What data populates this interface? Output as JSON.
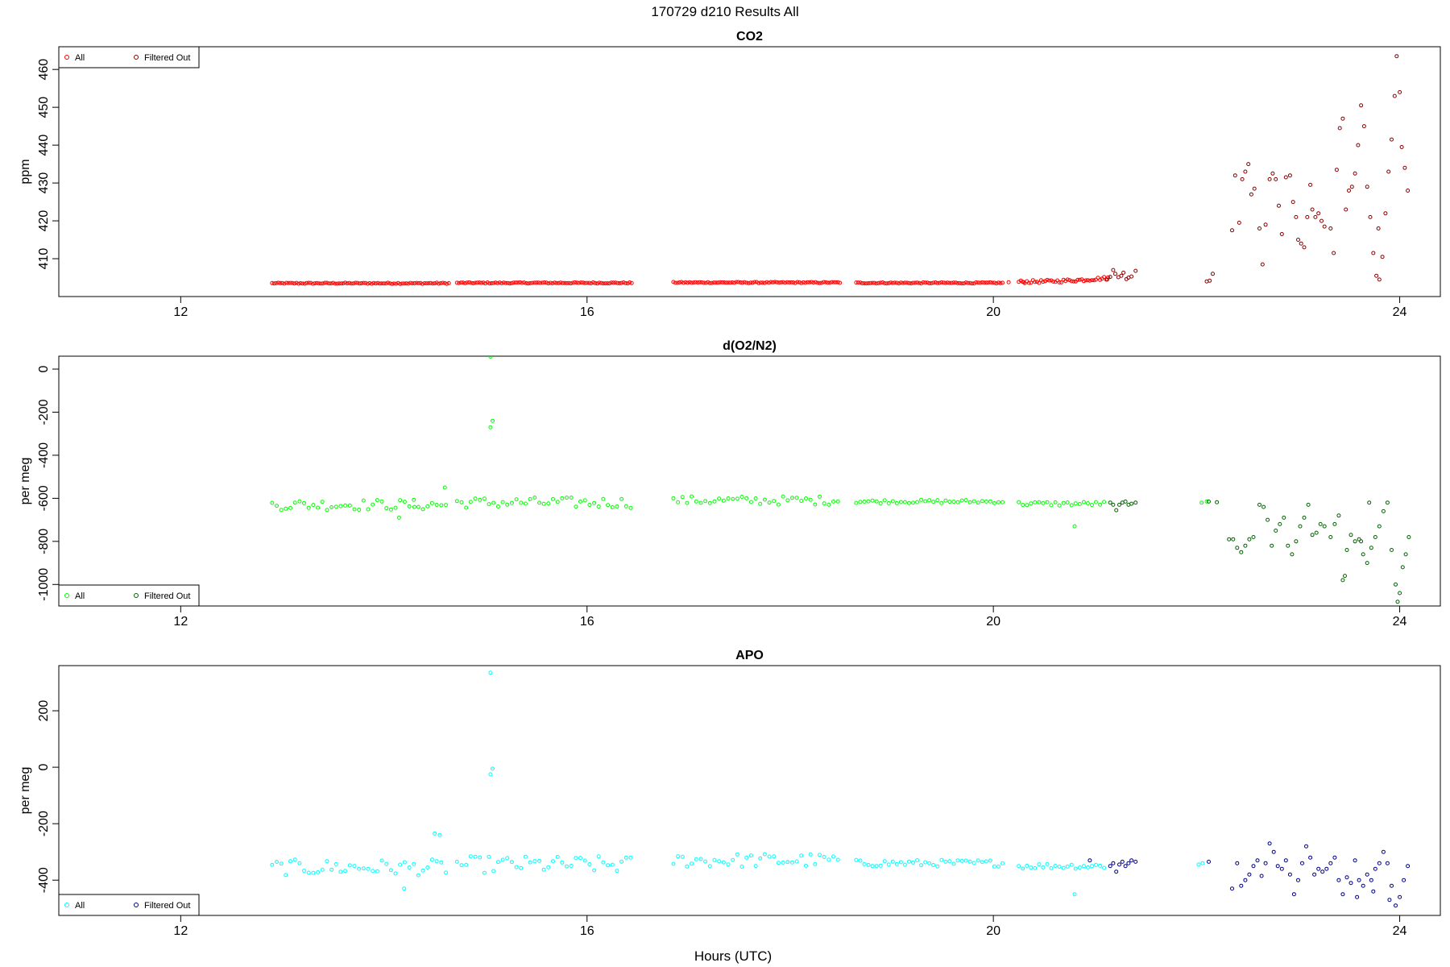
{
  "figure": {
    "title": "170729   d210   Results All",
    "xlabel": "Hours (UTC)"
  },
  "chart_data": [
    {
      "type": "scatter",
      "title": "CO2",
      "ylabel": "ppm",
      "xlim": [
        10.8,
        24.4
      ],
      "ylim": [
        400,
        466
      ],
      "xticks": [
        12,
        16,
        20,
        24
      ],
      "yticks": [
        410,
        420,
        430,
        440,
        450,
        460
      ],
      "legend": {
        "position": "top-left",
        "entries": [
          "All",
          "Filtered Out"
        ]
      },
      "series": [
        {
          "name": "All",
          "color": "#ff0000",
          "segments": [
            {
              "start": 12.9,
              "end": 14.65,
              "step": 0.02,
              "base": 403.5,
              "noise": 0.15,
              "drift": 0.0
            },
            {
              "start": 14.72,
              "end": 16.45,
              "step": 0.02,
              "base": 403.6,
              "noise": 0.15,
              "drift": 0.0
            },
            {
              "start": 16.85,
              "end": 18.5,
              "step": 0.02,
              "base": 403.7,
              "noise": 0.15,
              "drift": 0.0
            },
            {
              "start": 18.65,
              "end": 20.1,
              "step": 0.02,
              "base": 403.6,
              "noise": 0.15,
              "drift": 0.0
            },
            {
              "start": 20.25,
              "end": 21.15,
              "step": 0.02,
              "base": 403.9,
              "noise": 0.4,
              "drift": 1.0
            }
          ],
          "points": [
            [
              20.15,
              403.8
            ],
            [
              20.3,
              403.8
            ]
          ]
        },
        {
          "name": "Filtered Out",
          "color": "#8b0000",
          "points": [
            [
              21.12,
              404.5
            ],
            [
              21.15,
              405.2
            ],
            [
              21.18,
              407.0
            ],
            [
              21.2,
              406.0
            ],
            [
              21.23,
              405.1
            ],
            [
              21.26,
              405.5
            ],
            [
              21.28,
              406.3
            ],
            [
              21.31,
              404.6
            ],
            [
              21.33,
              405.0
            ],
            [
              21.36,
              405.3
            ],
            [
              21.4,
              406.8
            ],
            [
              22.1,
              404.0
            ],
            [
              22.13,
              404.2
            ],
            [
              22.16,
              406.0
            ],
            [
              22.35,
              417.5
            ],
            [
              22.38,
              432.0
            ],
            [
              22.42,
              419.5
            ],
            [
              22.45,
              431.0
            ],
            [
              22.48,
              433.0
            ],
            [
              22.51,
              435.0
            ],
            [
              22.54,
              427.0
            ],
            [
              22.57,
              428.5
            ],
            [
              22.62,
              418.0
            ],
            [
              22.65,
              408.5
            ],
            [
              22.68,
              419.0
            ],
            [
              22.72,
              431.0
            ],
            [
              22.75,
              432.5
            ],
            [
              22.78,
              431.0
            ],
            [
              22.81,
              424.0
            ],
            [
              22.84,
              416.5
            ],
            [
              22.88,
              431.5
            ],
            [
              22.92,
              432.0
            ],
            [
              22.95,
              425.0
            ],
            [
              22.98,
              421.0
            ],
            [
              23.0,
              415.0
            ],
            [
              23.03,
              414.0
            ],
            [
              23.06,
              413.0
            ],
            [
              23.09,
              421.0
            ],
            [
              23.12,
              429.5
            ],
            [
              23.14,
              423.0
            ],
            [
              23.17,
              421.0
            ],
            [
              23.2,
              422.0
            ],
            [
              23.23,
              420.0
            ],
            [
              23.26,
              418.5
            ],
            [
              23.32,
              418.0
            ],
            [
              23.35,
              411.5
            ],
            [
              23.38,
              433.5
            ],
            [
              23.41,
              444.5
            ],
            [
              23.44,
              447.0
            ],
            [
              23.47,
              423.0
            ],
            [
              23.5,
              428.0
            ],
            [
              23.53,
              429.0
            ],
            [
              23.56,
              432.5
            ],
            [
              23.59,
              440.0
            ],
            [
              23.62,
              450.5
            ],
            [
              23.65,
              445.0
            ],
            [
              23.68,
              429.0
            ],
            [
              23.71,
              421.0
            ],
            [
              23.74,
              411.5
            ],
            [
              23.77,
              405.5
            ],
            [
              23.8,
              404.5
            ],
            [
              23.83,
              410.5
            ],
            [
              23.86,
              422.0
            ],
            [
              23.89,
              433.0
            ],
            [
              23.92,
              441.5
            ],
            [
              23.95,
              453.0
            ],
            [
              23.97,
              463.5
            ],
            [
              24.0,
              454.0
            ],
            [
              24.02,
              439.5
            ],
            [
              24.05,
              434.0
            ],
            [
              24.08,
              428.0
            ],
            [
              23.79,
              418.0
            ]
          ]
        }
      ]
    },
    {
      "type": "scatter",
      "title": "d(O2/N2)",
      "ylabel": "per meg",
      "xlim": [
        10.8,
        24.4
      ],
      "ylim": [
        -1100,
        60
      ],
      "xticks": [
        12,
        16,
        20,
        24
      ],
      "yticks": [
        -1000,
        -800,
        -600,
        -400,
        -200,
        0
      ],
      "legend": {
        "position": "bottom-left",
        "entries": [
          "All",
          "Filtered Out"
        ]
      },
      "series": [
        {
          "name": "All",
          "color": "#00ff00",
          "segments": [
            {
              "start": 12.9,
              "end": 14.65,
              "step": 0.045,
              "base": -630,
              "noise": 25,
              "drift": 0
            },
            {
              "start": 14.72,
              "end": 16.45,
              "step": 0.045,
              "base": -620,
              "noise": 25,
              "drift": 0
            },
            {
              "start": 16.85,
              "end": 18.5,
              "step": 0.045,
              "base": -610,
              "noise": 20,
              "drift": 0
            },
            {
              "start": 18.65,
              "end": 20.1,
              "step": 0.04,
              "base": -615,
              "noise": 8,
              "drift": 0
            },
            {
              "start": 20.25,
              "end": 21.1,
              "step": 0.04,
              "base": -625,
              "noise": 10,
              "drift": 0
            }
          ],
          "points": [
            [
              15.05,
              58
            ],
            [
              15.07,
              -240
            ],
            [
              15.05,
              -270
            ],
            [
              14.6,
              -550
            ],
            [
              14.3,
              -640
            ],
            [
              14.15,
              -690
            ],
            [
              20.8,
              -730
            ],
            [
              22.05,
              -620
            ],
            [
              22.1,
              -615
            ]
          ]
        },
        {
          "name": "Filtered Out",
          "color": "#006400",
          "points": [
            [
              21.15,
              -620
            ],
            [
              21.18,
              -630
            ],
            [
              21.21,
              -655
            ],
            [
              21.24,
              -630
            ],
            [
              21.27,
              -620
            ],
            [
              21.3,
              -615
            ],
            [
              21.33,
              -630
            ],
            [
              21.36,
              -625
            ],
            [
              21.4,
              -620
            ],
            [
              22.12,
              -615
            ],
            [
              22.2,
              -618
            ],
            [
              22.32,
              -790
            ],
            [
              22.36,
              -790
            ],
            [
              22.4,
              -830
            ],
            [
              22.44,
              -850
            ],
            [
              22.48,
              -820
            ],
            [
              22.52,
              -790
            ],
            [
              22.56,
              -780
            ],
            [
              22.62,
              -630
            ],
            [
              22.66,
              -640
            ],
            [
              22.7,
              -700
            ],
            [
              22.74,
              -820
            ],
            [
              22.78,
              -750
            ],
            [
              22.82,
              -720
            ],
            [
              22.86,
              -690
            ],
            [
              22.9,
              -820
            ],
            [
              22.94,
              -860
            ],
            [
              22.98,
              -800
            ],
            [
              23.02,
              -730
            ],
            [
              23.06,
              -690
            ],
            [
              23.1,
              -630
            ],
            [
              23.14,
              -770
            ],
            [
              23.18,
              -760
            ],
            [
              23.22,
              -720
            ],
            [
              23.26,
              -730
            ],
            [
              23.32,
              -780
            ],
            [
              23.36,
              -720
            ],
            [
              23.4,
              -680
            ],
            [
              23.44,
              -980
            ],
            [
              23.48,
              -840
            ],
            [
              23.52,
              -770
            ],
            [
              23.56,
              -800
            ],
            [
              23.6,
              -790
            ],
            [
              23.64,
              -860
            ],
            [
              23.68,
              -900
            ],
            [
              23.72,
              -830
            ],
            [
              23.76,
              -780
            ],
            [
              23.8,
              -730
            ],
            [
              23.84,
              -660
            ],
            [
              23.88,
              -620
            ],
            [
              23.92,
              -840
            ],
            [
              23.96,
              -1000
            ],
            [
              24.0,
              -1040
            ],
            [
              24.03,
              -920
            ],
            [
              24.06,
              -860
            ],
            [
              24.09,
              -780
            ],
            [
              23.62,
              -800
            ],
            [
              23.98,
              -1080
            ],
            [
              23.7,
              -620
            ],
            [
              23.46,
              -960
            ]
          ]
        }
      ]
    },
    {
      "type": "scatter",
      "title": "APO",
      "ylabel": "per meg",
      "xlim": [
        10.8,
        24.4
      ],
      "ylim": [
        -525,
        360
      ],
      "xticks": [
        12,
        16,
        20,
        24
      ],
      "yticks": [
        -400,
        -200,
        0,
        200
      ],
      "legend": {
        "position": "bottom-left",
        "entries": [
          "All",
          "Filtered Out"
        ]
      },
      "series": [
        {
          "name": "All",
          "color": "#00ffff",
          "segments": [
            {
              "start": 12.9,
              "end": 14.65,
              "step": 0.045,
              "base": -355,
              "noise": 28,
              "drift": 0
            },
            {
              "start": 14.72,
              "end": 16.45,
              "step": 0.045,
              "base": -345,
              "noise": 30,
              "drift": 0
            },
            {
              "start": 16.85,
              "end": 18.5,
              "step": 0.045,
              "base": -330,
              "noise": 25,
              "drift": 0
            },
            {
              "start": 18.65,
              "end": 20.1,
              "step": 0.04,
              "base": -340,
              "noise": 12,
              "drift": 0
            },
            {
              "start": 20.25,
              "end": 21.1,
              "step": 0.04,
              "base": -350,
              "noise": 10,
              "drift": 0
            }
          ],
          "points": [
            [
              15.05,
              335
            ],
            [
              15.07,
              -5
            ],
            [
              15.05,
              -25
            ],
            [
              14.5,
              -235
            ],
            [
              14.55,
              -240
            ],
            [
              14.2,
              -430
            ],
            [
              20.8,
              -450
            ],
            [
              22.02,
              -345
            ],
            [
              22.06,
              -340
            ]
          ]
        },
        {
          "name": "Filtered Out",
          "color": "#00008b",
          "points": [
            [
              20.95,
              -330
            ],
            [
              21.15,
              -350
            ],
            [
              21.18,
              -340
            ],
            [
              21.21,
              -370
            ],
            [
              21.24,
              -345
            ],
            [
              21.27,
              -335
            ],
            [
              21.3,
              -350
            ],
            [
              21.33,
              -340
            ],
            [
              21.36,
              -330
            ],
            [
              21.4,
              -335
            ],
            [
              22.12,
              -335
            ],
            [
              22.35,
              -430
            ],
            [
              22.4,
              -340
            ],
            [
              22.44,
              -420
            ],
            [
              22.48,
              -400
            ],
            [
              22.52,
              -380
            ],
            [
              22.56,
              -350
            ],
            [
              22.6,
              -330
            ],
            [
              22.64,
              -385
            ],
            [
              22.68,
              -340
            ],
            [
              22.72,
              -270
            ],
            [
              22.76,
              -300
            ],
            [
              22.8,
              -350
            ],
            [
              22.84,
              -360
            ],
            [
              22.88,
              -330
            ],
            [
              22.92,
              -380
            ],
            [
              22.96,
              -450
            ],
            [
              23.0,
              -400
            ],
            [
              23.04,
              -340
            ],
            [
              23.08,
              -280
            ],
            [
              23.12,
              -320
            ],
            [
              23.16,
              -380
            ],
            [
              23.2,
              -360
            ],
            [
              23.24,
              -370
            ],
            [
              23.28,
              -360
            ],
            [
              23.32,
              -340
            ],
            [
              23.36,
              -320
            ],
            [
              23.4,
              -400
            ],
            [
              23.44,
              -450
            ],
            [
              23.48,
              -390
            ],
            [
              23.52,
              -410
            ],
            [
              23.56,
              -330
            ],
            [
              23.6,
              -400
            ],
            [
              23.64,
              -420
            ],
            [
              23.68,
              -380
            ],
            [
              23.72,
              -400
            ],
            [
              23.76,
              -360
            ],
            [
              23.8,
              -340
            ],
            [
              23.84,
              -300
            ],
            [
              23.88,
              -340
            ],
            [
              23.92,
              -420
            ],
            [
              23.96,
              -490
            ],
            [
              24.0,
              -460
            ],
            [
              24.04,
              -400
            ],
            [
              24.08,
              -350
            ],
            [
              23.74,
              -440
            ],
            [
              23.9,
              -470
            ],
            [
              23.58,
              -460
            ]
          ]
        }
      ]
    }
  ]
}
